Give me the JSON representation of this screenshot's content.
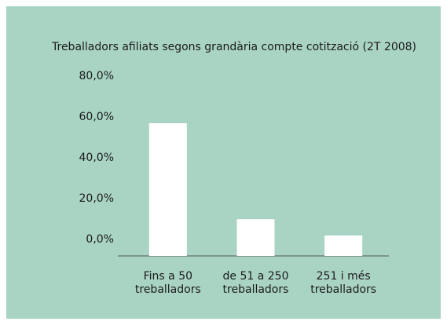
{
  "chart_data": {
    "type": "bar",
    "title": "Treballadors afiliats segons grandària compte cotització (2T 2008)",
    "categories": [
      "Fins a 50 treballadors",
      "de 51 a 250 treballadors",
      "251 i més treballadors"
    ],
    "values": [
      65,
      18,
      10
    ],
    "color": "#ffffff",
    "ylim": [
      0,
      80
    ],
    "yticks": [
      {
        "value": 0,
        "label": "0,0%"
      },
      {
        "value": 20,
        "label": "20,0%"
      },
      {
        "value": 40,
        "label": "40,0%"
      },
      {
        "value": 60,
        "label": "60,0%"
      },
      {
        "value": 80,
        "label": "80,0%"
      }
    ],
    "grid": false
  }
}
